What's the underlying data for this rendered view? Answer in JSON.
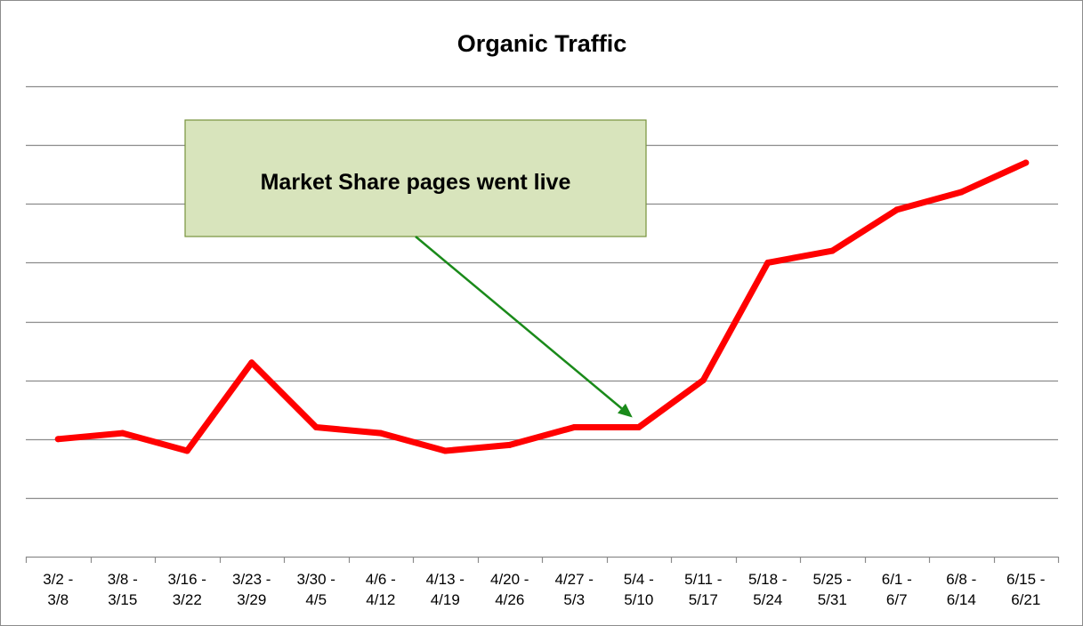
{
  "chart_data": {
    "type": "line",
    "title": "Organic Traffic",
    "xlabel": "",
    "ylabel": "",
    "categories": [
      "3/2 - 3/8",
      "3/8 - 3/15",
      "3/16 - 3/22",
      "3/23 - 3/29",
      "3/30 - 4/5",
      "4/6 - 4/12",
      "4/13 - 4/19",
      "4/20 - 4/26",
      "4/27 - 5/3",
      "5/4 - 5/10",
      "5/11 - 5/17",
      "5/18 - 5/24",
      "5/25 - 5/31",
      "6/1 - 6/7",
      "6/8 - 6/14",
      "6/15 - 6/21"
    ],
    "series": [
      {
        "values": [
          2.0,
          2.1,
          1.8,
          3.3,
          2.2,
          2.1,
          1.8,
          1.9,
          2.2,
          2.2,
          3.0,
          5.0,
          5.2,
          5.9,
          6.2,
          6.7
        ]
      }
    ],
    "ylim": [
      0,
      8
    ],
    "y_tick_labels_shown": false,
    "grid": true,
    "legend": "none",
    "annotation": {
      "text": "Market Share pages went live",
      "points_to_category": "5/4 - 5/10"
    },
    "colors": {
      "line": "#ff0000",
      "gridline": "#8c8c8c",
      "annotation_fill": "#d8e4bc",
      "annotation_border": "#77933c",
      "arrow": "#1a8a1a"
    }
  }
}
